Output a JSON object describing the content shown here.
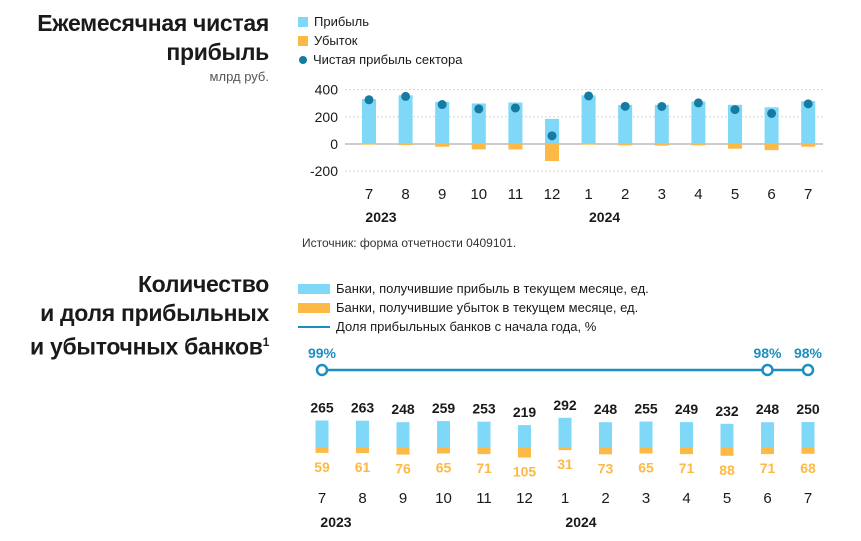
{
  "colors": {
    "profit": "#7FD8F7",
    "loss": "#FDB946",
    "net": "#157BA3",
    "line": "#1D8FBF",
    "text": "#1a1a1a"
  },
  "chart_data": [
    {
      "type": "bar",
      "title_line1": "Ежемесячная чистая",
      "title_line2": "прибыль",
      "unit": "млрд руб.",
      "legend": [
        "Прибыль",
        "Убыток",
        "Чистая прибыль сектора"
      ],
      "categories": [
        "7",
        "8",
        "9",
        "10",
        "11",
        "12",
        "1",
        "2",
        "3",
        "4",
        "5",
        "6",
        "7"
      ],
      "years": [
        "2023",
        "2024"
      ],
      "yticks": [
        "400",
        "200",
        "0",
        "-200"
      ],
      "ylim": [
        -200,
        400
      ],
      "series": [
        {
          "name": "Прибыль",
          "values": [
            330,
            358,
            310,
            298,
            305,
            185,
            358,
            287,
            288,
            312,
            288,
            270,
            315
          ]
        },
        {
          "name": "Убыток",
          "values": [
            -5,
            -8,
            -20,
            -40,
            -40,
            -125,
            -5,
            -10,
            -12,
            -10,
            -35,
            -45,
            -20
          ]
        },
        {
          "name": "Чистая прибыль сектора",
          "values": [
            325,
            350,
            290,
            258,
            265,
            60,
            353,
            277,
            276,
            302,
            253,
            225,
            295
          ]
        }
      ],
      "source": "Источник: форма отчетности 0409101."
    },
    {
      "type": "bar",
      "title_line1": "Количество",
      "title_line2": "и доля прибыльных",
      "title_line3": "и убыточных банков",
      "title_sup": "1",
      "legend": [
        "Банки, получившие прибыль в текущем месяце, ед.",
        "Банки, получившие убыток в текущем месяце, ед.",
        "Доля прибыльных банков с начала года, %"
      ],
      "categories": [
        "7",
        "8",
        "9",
        "10",
        "11",
        "12",
        "1",
        "2",
        "3",
        "4",
        "5",
        "6",
        "7"
      ],
      "years": [
        "2023",
        "2024"
      ],
      "series": [
        {
          "name": "Банки, получившие прибыль в текущем месяце, ед.",
          "values": [
            265,
            263,
            248,
            259,
            253,
            219,
            292,
            248,
            255,
            249,
            232,
            248,
            250
          ]
        },
        {
          "name": "Банки, получившие убыток в текущем месяце, ед.",
          "values": [
            59,
            61,
            76,
            65,
            71,
            105,
            31,
            73,
            65,
            71,
            88,
            71,
            68
          ]
        },
        {
          "name": "Доля прибыльных банков с начала года, %",
          "labels": {
            "0": "99%",
            "11": "98%",
            "12": "98%"
          }
        }
      ]
    }
  ]
}
